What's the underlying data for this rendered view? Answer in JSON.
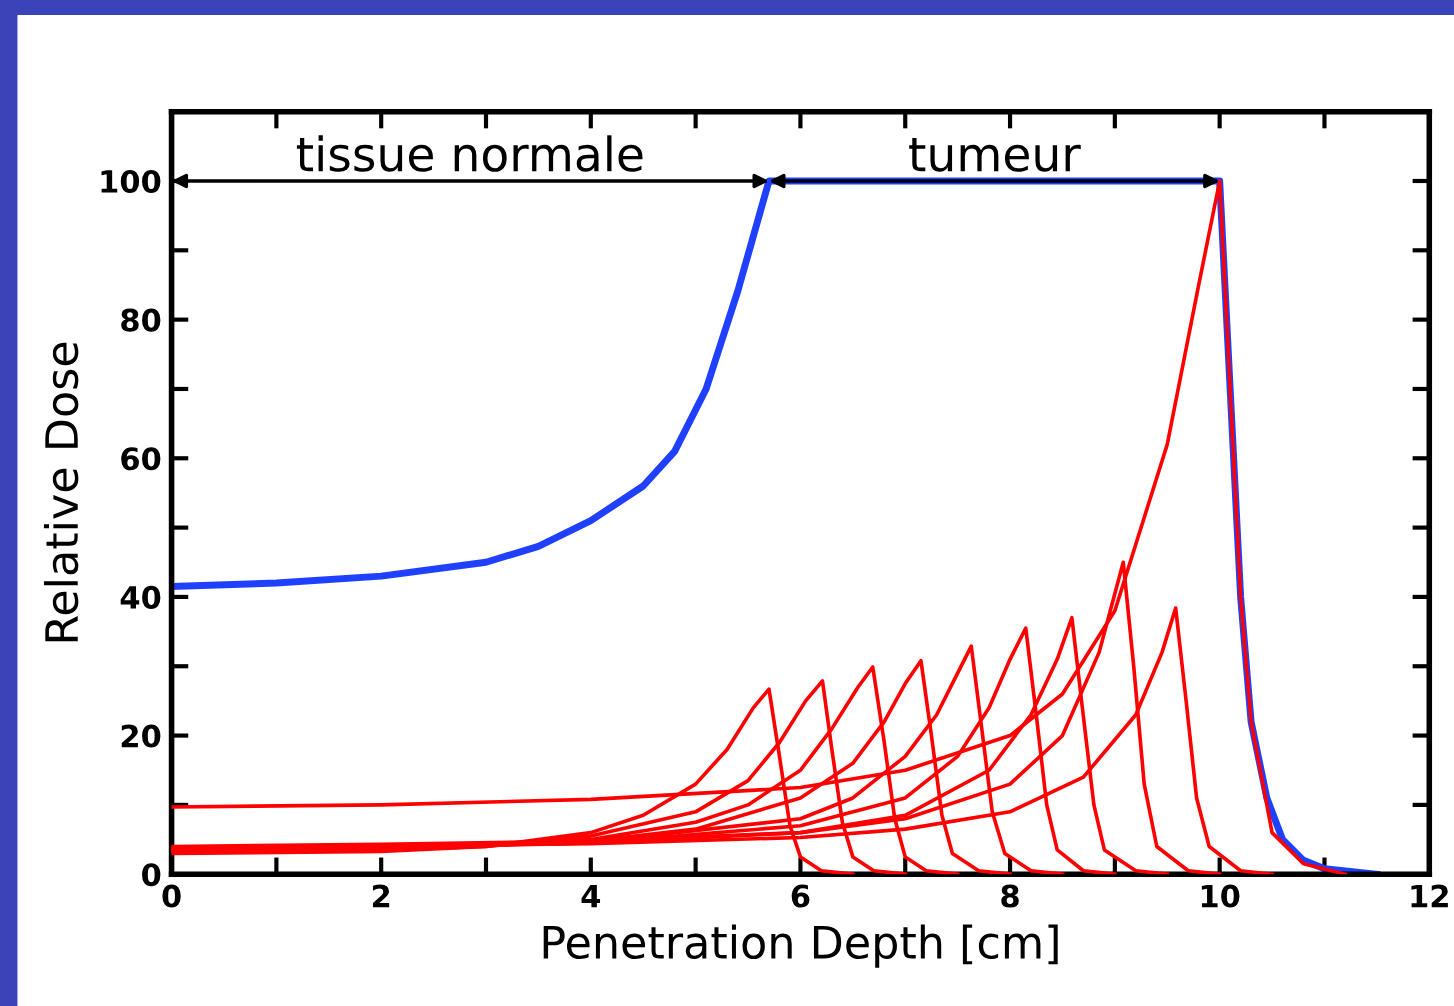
{
  "chart_data": {
    "type": "line",
    "xlabel": "Penetration Depth [cm]",
    "ylabel": "Relative Dose",
    "xlim": [
      0,
      12
    ],
    "ylim": [
      0,
      110
    ],
    "xticks": [
      0,
      {
        "value": 1,
        "label": null
      },
      2,
      {
        "value": 3,
        "label": null
      },
      4,
      {
        "value": 5,
        "label": null
      },
      6,
      {
        "value": 7,
        "label": null
      },
      8,
      {
        "value": 9,
        "label": null
      },
      10,
      {
        "value": 11,
        "label": null
      },
      12
    ],
    "yticks": [
      0,
      {
        "value": 10,
        "label": null
      },
      20,
      {
        "value": 30,
        "label": null
      },
      40,
      {
        "value": 50,
        "label": null
      },
      60,
      {
        "value": 70,
        "label": null
      },
      80,
      {
        "value": 90,
        "label": null
      },
      100,
      {
        "value": 110,
        "label": null
      }
    ],
    "grid": false,
    "legend": false,
    "annotations": [
      "tissue normale",
      "tumeur"
    ],
    "series": [
      {
        "color": "#ff0000",
        "x": [
          0,
          2,
          3,
          4,
          4.5,
          5,
          5.3,
          5.55,
          5.7,
          5.8,
          5.9,
          6.0,
          6.2,
          6.5
        ],
        "values": [
          3,
          3.3,
          4,
          6,
          8.5,
          13,
          18,
          24,
          26.7,
          17,
          7,
          2.5,
          0.5,
          0
        ]
      },
      {
        "color": "#ff0000",
        "x": [
          0,
          2,
          3,
          4,
          5,
          5.5,
          5.8,
          6.05,
          6.21,
          6.3,
          6.4,
          6.5,
          6.7,
          7.0
        ],
        "values": [
          3.2,
          3.5,
          4,
          5.5,
          9,
          13.5,
          19,
          25,
          27.9,
          18,
          7.5,
          2.5,
          0.5,
          0
        ]
      },
      {
        "color": "#ff0000",
        "x": [
          0,
          2,
          4,
          5,
          5.5,
          6,
          6.3,
          6.55,
          6.69,
          6.8,
          6.9,
          7.0,
          7.2,
          7.5
        ],
        "values": [
          3.3,
          3.6,
          5,
          7.5,
          10,
          15,
          21,
          27,
          29.9,
          19,
          8,
          2.5,
          0.5,
          0
        ]
      },
      {
        "color": "#ff0000",
        "x": [
          0,
          2,
          4,
          5,
          6,
          6.5,
          6.8,
          7.0,
          7.15,
          7.25,
          7.35,
          7.45,
          7.7,
          8.0
        ],
        "values": [
          3.4,
          3.7,
          4.8,
          6.5,
          11,
          16,
          22,
          27.5,
          30.8,
          20,
          8.5,
          3,
          0.5,
          0
        ]
      },
      {
        "color": "#ff0000",
        "x": [
          0,
          2,
          4,
          6,
          6.5,
          7,
          7.3,
          7.5,
          7.63,
          7.73,
          7.83,
          7.95,
          8.2,
          8.5
        ],
        "values": [
          3.5,
          3.8,
          4.6,
          8,
          11,
          17,
          23,
          29,
          32.9,
          21,
          9,
          3,
          0.5,
          0
        ]
      },
      {
        "color": "#ff0000",
        "x": [
          0,
          2,
          4,
          6,
          7,
          7.5,
          7.8,
          8.0,
          8.15,
          8.25,
          8.35,
          8.45,
          8.7,
          9.0
        ],
        "values": [
          3.6,
          3.9,
          4.5,
          7,
          11,
          17,
          24,
          31,
          35.5,
          23,
          10,
          3.5,
          0.5,
          0
        ]
      },
      {
        "color": "#ff0000",
        "x": [
          0,
          2,
          4,
          6,
          7,
          7.8,
          8.2,
          8.45,
          8.59,
          8.69,
          8.8,
          8.9,
          9.2,
          9.5
        ],
        "values": [
          3.7,
          4,
          4.5,
          6,
          8.5,
          15,
          23,
          31,
          37,
          24,
          10,
          3.5,
          0.5,
          0
        ]
      },
      {
        "color": "#ff0000",
        "x": [
          0,
          2,
          4,
          6,
          7,
          8,
          8.5,
          8.85,
          9.08,
          9.18,
          9.28,
          9.4,
          9.7,
          10.0
        ],
        "values": [
          4,
          4.3,
          4.8,
          6,
          8,
          13,
          20,
          32,
          45,
          30,
          13,
          4,
          0.5,
          0
        ]
      },
      {
        "color": "#ff0000",
        "x": [
          0,
          2,
          4,
          6,
          7,
          8,
          8.7,
          9.2,
          9.45,
          9.58,
          9.68,
          9.78,
          9.9,
          10.2,
          10.5
        ],
        "values": [
          3.8,
          4,
          4.4,
          5.3,
          6.5,
          9,
          14,
          23,
          32,
          38.4,
          25,
          11,
          4,
          0.5,
          0
        ]
      },
      {
        "color": "#ff0000",
        "x": [
          0,
          2,
          4,
          6,
          7,
          8,
          8.5,
          9.0,
          9.5,
          9.8,
          10.0,
          10.1,
          10.2,
          10.3,
          10.5,
          10.8,
          11.2
        ],
        "values": [
          9.7,
          10,
          10.8,
          12.5,
          15,
          20,
          26,
          38,
          62,
          85,
          100,
          70,
          40,
          22,
          6,
          1.5,
          0
        ]
      },
      {
        "color": "#2040ff",
        "x": [
          0,
          1,
          2,
          3,
          3.5,
          4,
          4.5,
          4.8,
          5.1,
          5.4,
          5.7,
          10.0,
          10.1,
          10.2,
          10.3,
          10.45,
          10.6,
          10.8,
          11.0,
          11.5
        ],
        "values": [
          41.5,
          42,
          43,
          45,
          47.3,
          51,
          56,
          61,
          70,
          84,
          100,
          100,
          70,
          40,
          22,
          11,
          5,
          2,
          0.8,
          0
        ]
      }
    ]
  }
}
